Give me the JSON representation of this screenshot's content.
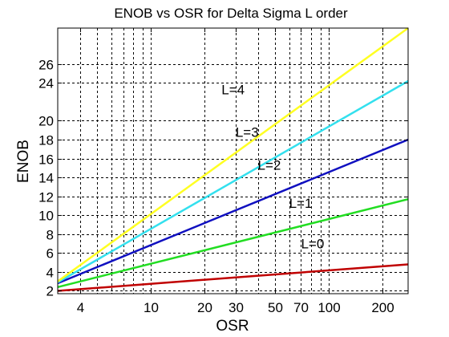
{
  "chart_data": {
    "type": "line",
    "title": "ENOB vs OSR for Delta Sigma L order",
    "xlabel": "OSR",
    "ylabel": "ENOB",
    "xscale": "log",
    "xlim": [
      3,
      280
    ],
    "ylim": [
      1.7,
      29.8
    ],
    "x_ticks": [
      {
        "value": 4,
        "label": "4"
      },
      {
        "value": 10,
        "label": "10"
      },
      {
        "value": 20,
        "label": "20"
      },
      {
        "value": 30,
        "label": "30"
      },
      {
        "value": 50,
        "label": "50"
      },
      {
        "value": 70,
        "label": "70"
      },
      {
        "value": 100,
        "label": "100"
      },
      {
        "value": 200,
        "label": "200"
      }
    ],
    "x_minor_gridlines": [
      5,
      6,
      7,
      8,
      9,
      40,
      60,
      80,
      90
    ],
    "y_ticks": [
      {
        "value": 2,
        "label": "2"
      },
      {
        "value": 4,
        "label": "4"
      },
      {
        "value": 6,
        "label": "6"
      },
      {
        "value": 8,
        "label": "8"
      },
      {
        "value": 10,
        "label": "10"
      },
      {
        "value": 12,
        "label": "12"
      },
      {
        "value": 14,
        "label": "14"
      },
      {
        "value": 16,
        "label": "16"
      },
      {
        "value": 18,
        "label": "18"
      },
      {
        "value": 20,
        "label": "20"
      },
      {
        "value": 24,
        "label": "24"
      },
      {
        "value": 26,
        "label": "26"
      }
    ],
    "grid": true,
    "grid_style": "dashed",
    "series": [
      {
        "label": "L=0",
        "color": "#c00000",
        "label_at": [
          70,
          6.5
        ],
        "x": [
          3,
          280
        ],
        "y": [
          2.0,
          4.8
        ]
      },
      {
        "label": "L=1",
        "color": "#22dd22",
        "label_at": [
          60,
          10.8
        ],
        "x": [
          3,
          280
        ],
        "y": [
          2.4,
          11.7
        ]
      },
      {
        "label": "L=2",
        "color": "#1010c0",
        "label_at": [
          40,
          14.8
        ],
        "x": [
          3,
          280
        ],
        "y": [
          2.8,
          18.0
        ]
      },
      {
        "label": "L=3",
        "color": "#33e0ee",
        "label_at": [
          30,
          18.3
        ],
        "x": [
          3,
          280
        ],
        "y": [
          2.9,
          24.2
        ]
      },
      {
        "label": "L=4",
        "color": "#ffff22",
        "label_at": [
          25,
          22.8
        ],
        "x": [
          3,
          280
        ],
        "y": [
          3.0,
          29.8
        ]
      }
    ]
  }
}
